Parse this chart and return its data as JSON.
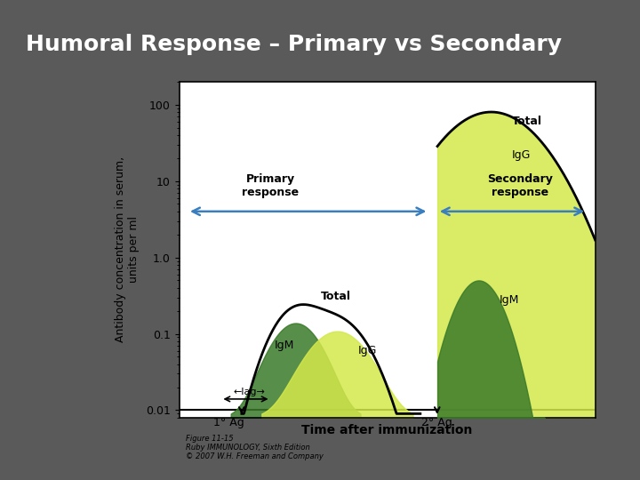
{
  "title": "Humoral Response – Primary vs Secondary",
  "title_color": "#ffffff",
  "bg_color": "#5a5a5a",
  "plot_bg_color": "#ffffff",
  "ylabel": "Antibody concentration in serum,\nunits per ml",
  "xlabel": "Time after immunization",
  "xlim": [
    0,
    100
  ],
  "ylim_log": [
    -2,
    2
  ],
  "tick_color": "#000000",
  "primary_response_label": "Primary\nresponse",
  "secondary_response_label": "Secondary\nresponse",
  "arrow_color": "#3a7ebf",
  "primary_IgM_color": "#3a7a2a",
  "primary_IgG_color": "#d4e84a",
  "secondary_IgM_color": "#3a7a2a",
  "secondary_IgG_color": "#d4e84a",
  "total_line_color": "#000000",
  "ag1_x": 15,
  "ag2_x": 60,
  "lag_x_start": 10,
  "lag_x_end": 22,
  "figure_caption": "Figure 11-15\nRuby IMMUNOLOGY, Sixth Edition\n© 2007 W.H. Freeman and Company"
}
